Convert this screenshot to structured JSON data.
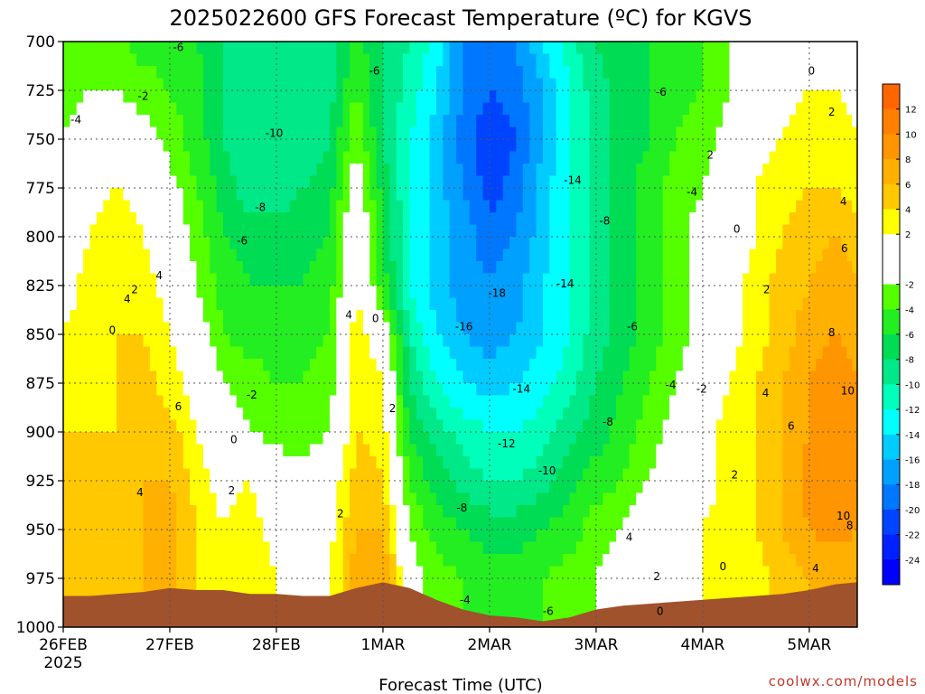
{
  "chart_data": {
    "type": "heatmap",
    "title": "2025022600 GFS Forecast Temperature (ºC) for KGVS",
    "xlabel": "Forecast Time (UTC)",
    "ylabel": "",
    "credit": "coolwx.com/models",
    "x_ticks": [
      {
        "label": "26FEB",
        "sublabel": "2025",
        "day": 0
      },
      {
        "label": "27FEB",
        "day": 1
      },
      {
        "label": "28FEB",
        "day": 2
      },
      {
        "label": "1MAR",
        "day": 3
      },
      {
        "label": "2MAR",
        "day": 4
      },
      {
        "label": "3MAR",
        "day": 5
      },
      {
        "label": "4MAR",
        "day": 6
      },
      {
        "label": "5MAR",
        "day": 7
      }
    ],
    "xlim_days": [
      0,
      7.45
    ],
    "y_ticks": [
      700,
      725,
      750,
      775,
      800,
      825,
      850,
      875,
      900,
      925,
      950,
      975,
      1000
    ],
    "ylim_hpa": [
      1000,
      700
    ],
    "grid": true,
    "colorbar": {
      "labels": [
        "12",
        "10",
        "8",
        "6",
        "4",
        "2",
        "-2",
        "-4",
        "-6",
        "-8",
        "-10",
        "-12",
        "-14",
        "-16",
        "-18",
        "-20",
        "-22",
        "-24"
      ],
      "levels": [
        {
          "min": 12,
          "max": 14,
          "color": "#ff6600"
        },
        {
          "min": 10,
          "max": 12,
          "color": "#ff7f00"
        },
        {
          "min": 8,
          "max": 10,
          "color": "#ff9500"
        },
        {
          "min": 6,
          "max": 8,
          "color": "#ffb000"
        },
        {
          "min": 4,
          "max": 6,
          "color": "#ffc800"
        },
        {
          "min": 2,
          "max": 4,
          "color": "#ffff00"
        },
        {
          "min": 0,
          "max": 2,
          "color": "#ffffff"
        },
        {
          "min": -2,
          "max": 0,
          "color": "#ffffff"
        },
        {
          "min": -4,
          "max": -2,
          "color": "#55ff00"
        },
        {
          "min": -6,
          "max": -4,
          "color": "#22ee22"
        },
        {
          "min": -8,
          "max": -6,
          "color": "#00dd55"
        },
        {
          "min": -10,
          "max": -8,
          "color": "#00e888"
        },
        {
          "min": -12,
          "max": -10,
          "color": "#00ffbb"
        },
        {
          "min": -14,
          "max": -12,
          "color": "#00ffff"
        },
        {
          "min": -16,
          "max": -14,
          "color": "#00ccff"
        },
        {
          "min": -18,
          "max": -16,
          "color": "#00a0ff"
        },
        {
          "min": -20,
          "max": -18,
          "color": "#0077ff"
        },
        {
          "min": -22,
          "max": -20,
          "color": "#0044ff"
        },
        {
          "min": -24,
          "max": -22,
          "color": "#0022ff"
        },
        {
          "min": -26,
          "max": -24,
          "color": "#0000ff"
        }
      ]
    },
    "terrain_color": "#a0522d",
    "terrain_hpa": [
      {
        "day": 0.0,
        "p": 984
      },
      {
        "day": 0.25,
        "p": 984
      },
      {
        "day": 0.5,
        "p": 983
      },
      {
        "day": 0.75,
        "p": 982
      },
      {
        "day": 1.0,
        "p": 980
      },
      {
        "day": 1.25,
        "p": 981
      },
      {
        "day": 1.5,
        "p": 981
      },
      {
        "day": 1.75,
        "p": 983
      },
      {
        "day": 2.0,
        "p": 983
      },
      {
        "day": 2.25,
        "p": 984
      },
      {
        "day": 2.5,
        "p": 984
      },
      {
        "day": 2.75,
        "p": 980
      },
      {
        "day": 3.0,
        "p": 977
      },
      {
        "day": 3.25,
        "p": 980
      },
      {
        "day": 3.5,
        "p": 986
      },
      {
        "day": 3.75,
        "p": 991
      },
      {
        "day": 4.0,
        "p": 994
      },
      {
        "day": 4.25,
        "p": 995
      },
      {
        "day": 4.5,
        "p": 997
      },
      {
        "day": 4.75,
        "p": 995
      },
      {
        "day": 5.0,
        "p": 991
      },
      {
        "day": 5.25,
        "p": 989
      },
      {
        "day": 5.5,
        "p": 988
      },
      {
        "day": 5.75,
        "p": 987
      },
      {
        "day": 6.0,
        "p": 986
      },
      {
        "day": 6.25,
        "p": 985
      },
      {
        "day": 6.5,
        "p": 984
      },
      {
        "day": 6.75,
        "p": 983
      },
      {
        "day": 7.0,
        "p": 981
      },
      {
        "day": 7.25,
        "p": 978
      },
      {
        "day": 7.45,
        "p": 977
      }
    ],
    "temperature_grid": {
      "days": [
        0.0,
        0.25,
        0.5,
        0.75,
        1.0,
        1.25,
        1.5,
        1.75,
        2.0,
        2.25,
        2.5,
        2.75,
        3.0,
        3.25,
        3.5,
        3.75,
        4.0,
        4.25,
        4.5,
        4.75,
        5.0,
        5.25,
        5.5,
        5.75,
        6.0,
        6.25,
        6.5,
        6.75,
        7.0,
        7.25,
        7.45
      ],
      "pressure_hpa": [
        700,
        725,
        750,
        775,
        800,
        825,
        850,
        875,
        900,
        925,
        950,
        975,
        1000
      ],
      "values_by_pressure": [
        [
          -4,
          -3,
          -3,
          -5,
          -5,
          -6,
          -8,
          -9,
          -9,
          -9,
          -9,
          -5,
          -8,
          -10,
          -13,
          -18,
          -18,
          -18,
          -14,
          -11,
          -8,
          -6,
          -6,
          -5,
          -4,
          -2,
          0,
          1,
          1,
          0,
          0
        ],
        [
          -3,
          -2,
          -2,
          -3,
          -4,
          -5,
          -8,
          -10,
          -10,
          -10,
          -9,
          -4,
          -8,
          -11,
          -14,
          -18,
          -20,
          -19,
          -16,
          -12,
          -9,
          -7,
          -6,
          -5,
          -4,
          -2,
          0,
          1,
          2,
          2,
          1
        ],
        [
          -2,
          -1,
          0,
          -1,
          -3,
          -5,
          -8,
          -10,
          -10,
          -10,
          -8,
          -2,
          -8,
          -12,
          -15,
          -19,
          -22,
          -20,
          -16,
          -12,
          -9,
          -7,
          -6,
          -4,
          -3,
          -1,
          1,
          2,
          3,
          3,
          2
        ],
        [
          0,
          1,
          2,
          1,
          -1,
          -4,
          -7,
          -9,
          -9,
          -8,
          -7,
          0,
          -7,
          -12,
          -15,
          -18,
          -21,
          -19,
          -15,
          -12,
          -9,
          -7,
          -5,
          -3,
          -2,
          0,
          2,
          3,
          4,
          4,
          3
        ],
        [
          0,
          2,
          3,
          2,
          0,
          -3,
          -6,
          -7,
          -7,
          -7,
          -6,
          1,
          -6,
          -12,
          -15,
          -17,
          -19,
          -18,
          -15,
          -12,
          -9,
          -7,
          -5,
          -3,
          -1,
          0,
          2,
          4,
          5,
          6,
          5
        ],
        [
          1,
          3,
          4,
          3,
          1,
          -2,
          -5,
          -6,
          -6,
          -6,
          -5,
          2,
          -5,
          -12,
          -15,
          -17,
          -18,
          -17,
          -14,
          -12,
          -9,
          -7,
          -5,
          -3,
          -1,
          1,
          3,
          5,
          6,
          7,
          6
        ],
        [
          2,
          3,
          4,
          4,
          2,
          0,
          -4,
          -5,
          -5,
          -5,
          -4,
          3,
          0,
          -10,
          -14,
          -16,
          -17,
          -16,
          -14,
          -12,
          -9,
          -7,
          -5,
          -3,
          -1,
          1,
          3,
          5,
          7,
          8,
          7
        ],
        [
          3,
          3,
          4,
          5,
          3,
          1,
          -2,
          -3,
          -4,
          -4,
          -3,
          4,
          2,
          -8,
          -12,
          -14,
          -15,
          -14,
          -13,
          -11,
          -8,
          -6,
          -4,
          -2,
          0,
          2,
          4,
          6,
          8,
          9,
          8
        ],
        [
          4,
          4,
          4,
          5,
          5,
          2,
          0,
          -2,
          -3,
          -3,
          -2,
          4,
          3,
          -6,
          -9,
          -11,
          -12,
          -12,
          -11,
          -9,
          -7,
          -5,
          -3,
          -1,
          1,
          3,
          4,
          6,
          8,
          10,
          9
        ],
        [
          4,
          4,
          4,
          6,
          6,
          3,
          1,
          2,
          0,
          -1,
          0,
          5,
          4,
          -4,
          -7,
          -9,
          -10,
          -10,
          -9,
          -7,
          -5,
          -4,
          -2,
          0,
          1,
          3,
          4,
          6,
          9,
          10,
          9
        ],
        [
          5,
          5,
          5,
          6,
          7,
          4,
          2,
          3,
          1,
          0,
          1,
          6,
          6,
          -2,
          -5,
          -6,
          -7,
          -7,
          -6,
          -5,
          -3,
          -2,
          0,
          1,
          2,
          3,
          4,
          6,
          8,
          9,
          8
        ],
        [
          5,
          5,
          5,
          6,
          7,
          4,
          2,
          4,
          2,
          1,
          2,
          7,
          8,
          -1,
          -3,
          -4,
          -5,
          -5,
          -4,
          -3,
          -2,
          -1,
          0,
          1,
          2,
          2,
          3,
          5,
          6,
          6,
          6
        ],
        [
          5,
          5,
          5,
          6,
          7,
          4,
          2,
          4,
          2,
          1,
          2,
          7,
          8,
          -1,
          -3,
          -4,
          -5,
          -5,
          -4,
          -3,
          -2,
          -1,
          0,
          1,
          2,
          2,
          3,
          5,
          6,
          6,
          6
        ]
      ]
    },
    "contour_labels": [
      {
        "text": "-6",
        "day": 1.08,
        "p": 703
      },
      {
        "text": "-4",
        "day": 0.12,
        "p": 740
      },
      {
        "text": "-2",
        "day": 0.75,
        "p": 728
      },
      {
        "text": "-10",
        "day": 1.98,
        "p": 747
      },
      {
        "text": "-6",
        "day": 2.92,
        "p": 715
      },
      {
        "text": "-8",
        "day": 1.85,
        "p": 785
      },
      {
        "text": "-6",
        "day": 1.68,
        "p": 802
      },
      {
        "text": "4",
        "day": 0.6,
        "p": 832
      },
      {
        "text": "2",
        "day": 0.67,
        "p": 827
      },
      {
        "text": "4",
        "day": 0.9,
        "p": 820
      },
      {
        "text": "0",
        "day": 0.46,
        "p": 848
      },
      {
        "text": "-2",
        "day": 1.77,
        "p": 881
      },
      {
        "text": "0",
        "day": 1.6,
        "p": 904
      },
      {
        "text": "2",
        "day": 1.58,
        "p": 930
      },
      {
        "text": "4",
        "day": 0.72,
        "p": 931
      },
      {
        "text": "6",
        "day": 1.08,
        "p": 887
      },
      {
        "text": "2",
        "day": 2.6,
        "p": 942
      },
      {
        "text": "4",
        "day": 2.68,
        "p": 840
      },
      {
        "text": "0",
        "day": 2.93,
        "p": 842
      },
      {
        "text": "2",
        "day": 3.09,
        "p": 888
      },
      {
        "text": "-14",
        "day": 4.78,
        "p": 771
      },
      {
        "text": "-18",
        "day": 4.07,
        "p": 829
      },
      {
        "text": "-16",
        "day": 3.76,
        "p": 846
      },
      {
        "text": "-14",
        "day": 4.71,
        "p": 824
      },
      {
        "text": "-8",
        "day": 5.08,
        "p": 792
      },
      {
        "text": "-14",
        "day": 4.3,
        "p": 878
      },
      {
        "text": "-12",
        "day": 4.16,
        "p": 906
      },
      {
        "text": "-8",
        "day": 5.11,
        "p": 895
      },
      {
        "text": "-10",
        "day": 4.54,
        "p": 920
      },
      {
        "text": "-8",
        "day": 3.74,
        "p": 939
      },
      {
        "text": "-4",
        "day": 3.77,
        "p": 986
      },
      {
        "text": "-6",
        "day": 4.55,
        "p": 992
      },
      {
        "text": "4",
        "day": 5.31,
        "p": 954
      },
      {
        "text": "-6",
        "day": 5.34,
        "p": 846
      },
      {
        "text": "-4",
        "day": 5.7,
        "p": 876
      },
      {
        "text": "-6",
        "day": 5.61,
        "p": 726
      },
      {
        "text": "-4",
        "day": 5.9,
        "p": 777
      },
      {
        "text": "2",
        "day": 6.07,
        "p": 758
      },
      {
        "text": "0",
        "day": 6.32,
        "p": 796
      },
      {
        "text": "2",
        "day": 6.6,
        "p": 827
      },
      {
        "text": "-2",
        "day": 5.99,
        "p": 878
      },
      {
        "text": "4",
        "day": 6.59,
        "p": 880
      },
      {
        "text": "2",
        "day": 6.3,
        "p": 922
      },
      {
        "text": "0",
        "day": 6.19,
        "p": 969
      },
      {
        "text": "0",
        "day": 5.6,
        "p": 992
      },
      {
        "text": "2",
        "day": 5.57,
        "p": 974
      },
      {
        "text": "0",
        "day": 7.02,
        "p": 715
      },
      {
        "text": "2",
        "day": 7.21,
        "p": 736
      },
      {
        "text": "4",
        "day": 7.32,
        "p": 782
      },
      {
        "text": "6",
        "day": 7.33,
        "p": 806
      },
      {
        "text": "8",
        "day": 7.21,
        "p": 849
      },
      {
        "text": "10",
        "day": 7.36,
        "p": 879
      },
      {
        "text": "6",
        "day": 6.83,
        "p": 897
      },
      {
        "text": "10",
        "day": 7.32,
        "p": 943
      },
      {
        "text": "8",
        "day": 7.38,
        "p": 948
      },
      {
        "text": "4",
        "day": 7.06,
        "p": 970
      }
    ]
  }
}
